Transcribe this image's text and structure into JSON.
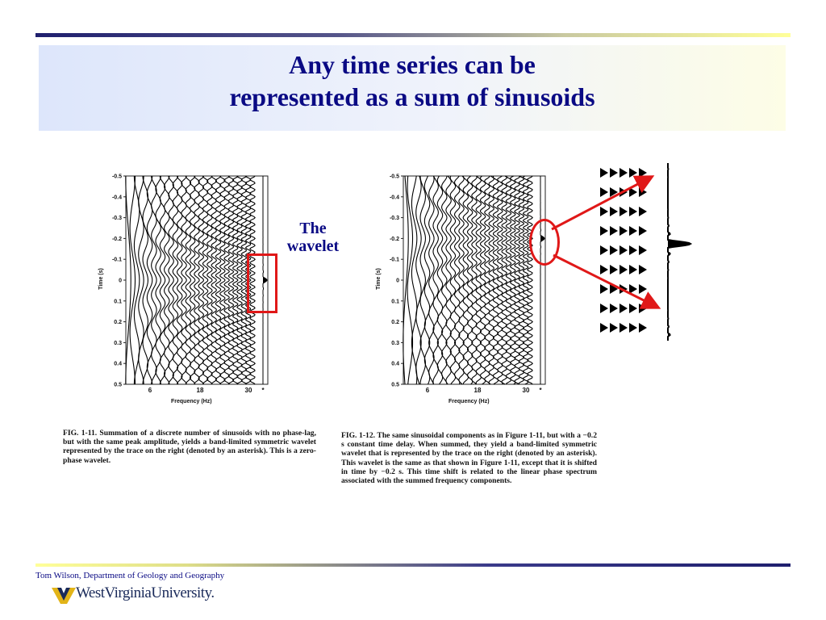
{
  "slide": {
    "title_line1": "Any time series can be",
    "title_line2": "represented as a sum of sinusoids",
    "wavelet_label_line1": "The",
    "wavelet_label_line2": "wavelet",
    "footer": "Tom Wilson, Department of Geology and Geography",
    "logo_text": "WestVirginiaUniversity.",
    "colors": {
      "title": "#0a0a84",
      "highlight": "#e01818"
    }
  },
  "figure1": {
    "ylabel": "Time (s)",
    "xlabel": "Frequency (Hz)",
    "yticks": [
      "-0.5",
      "-0.4",
      "-0.3",
      "-0.2",
      "-0.1",
      "0",
      "0.1",
      "0.2",
      "0.3",
      "0.4",
      "0.5"
    ],
    "xticks": [
      "6",
      "18",
      "30",
      "*"
    ],
    "caption": "FIG. 1-11. Summation of a discrete number of sinusoids with no phase-lag, but with the same peak amplitude, yields a band-limited symmetric wavelet represented by the trace on the right (denoted by an asterisk). This is a zero-phase wavelet."
  },
  "figure2": {
    "ylabel": "Time (s)",
    "xlabel": "Frequency (Hz)",
    "yticks": [
      "-0.5",
      "-0.4",
      "-0.3",
      "-0.2",
      "-0.1",
      "0",
      "0.1",
      "0.2",
      "0.3",
      "0.4",
      "0.5"
    ],
    "xticks": [
      "6",
      "18",
      "30",
      "*"
    ],
    "caption": "FIG. 1-12. The same sinusoidal components as in Figure 1-11, but with a −0.2 s constant time delay. When summed, they yield a band-limited symmetric wavelet that is represented by the trace on the right (denoted by an asterisk). This wavelet is the same as that shown in Figure 1-11, except that it is shifted in time by −0.2 s. This time shift is related to the linear phase spectrum associated with the summed frequency components."
  }
}
